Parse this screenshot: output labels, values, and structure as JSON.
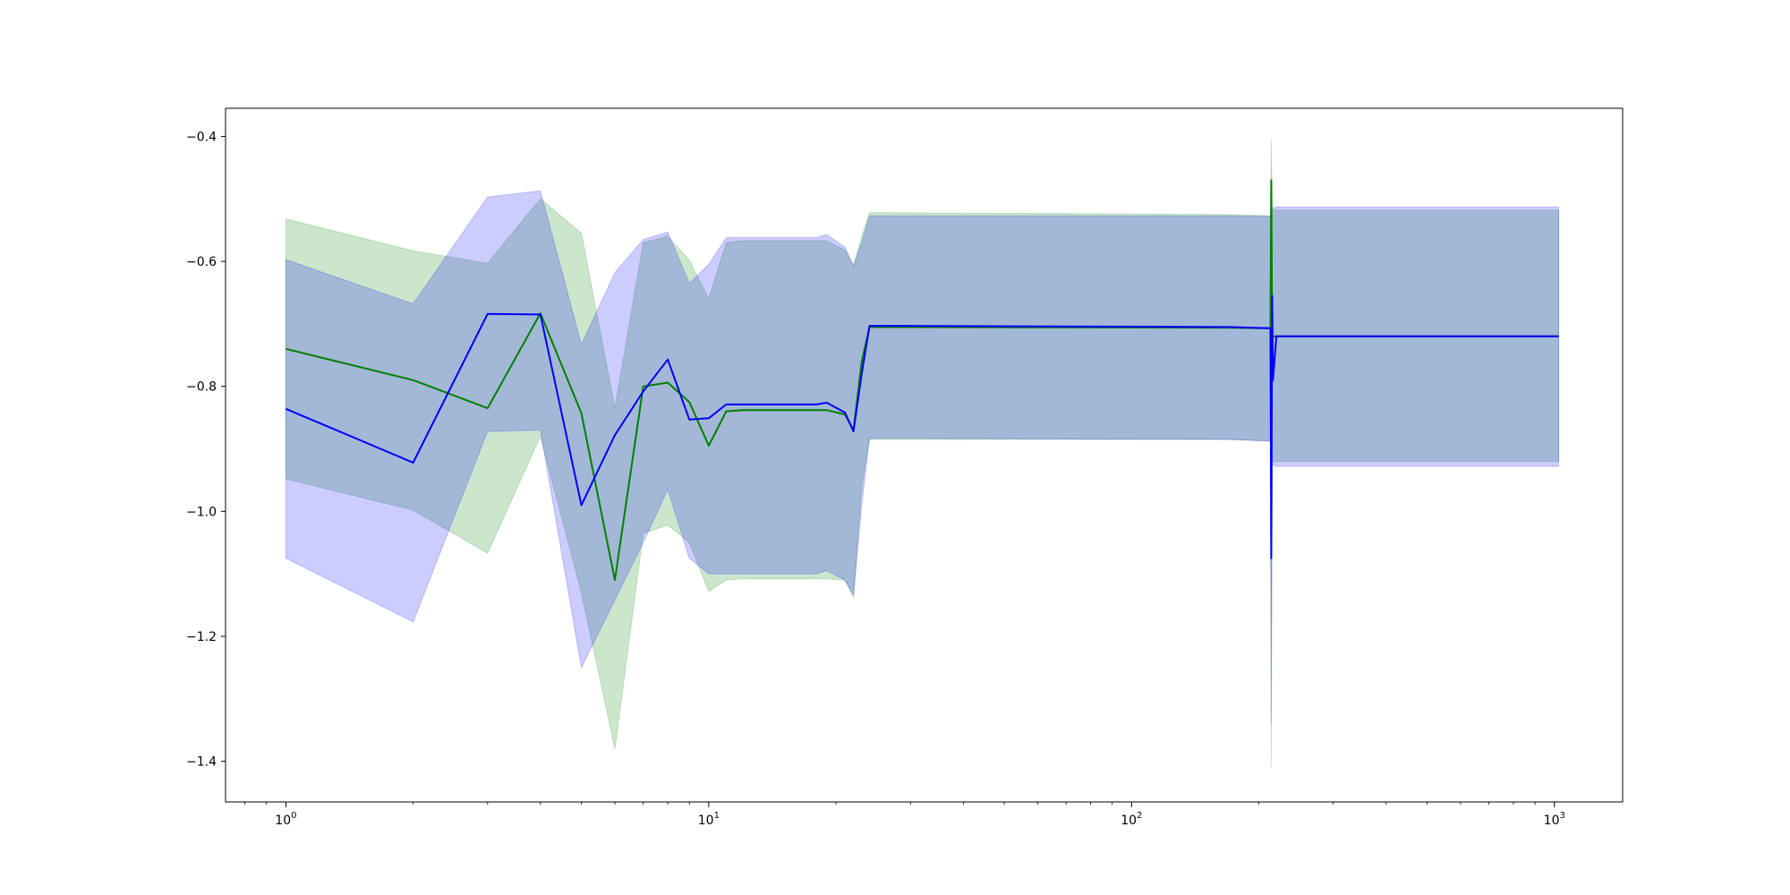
{
  "chart_data": {
    "type": "line",
    "x_scale": "log",
    "xlim": [
      0.72,
      1450
    ],
    "ylim": [
      -1.465,
      -0.355
    ],
    "grid": false,
    "title": "",
    "xlabel": "",
    "ylabel": "",
    "x_ticks": [
      {
        "value": 1,
        "base": "10",
        "exp": "0"
      },
      {
        "value": 10,
        "base": "10",
        "exp": "1"
      },
      {
        "value": 100,
        "base": "10",
        "exp": "2"
      },
      {
        "value": 1000,
        "base": "10",
        "exp": "3"
      }
    ],
    "y_ticks": [
      {
        "value": -0.4,
        "label": "−0.4"
      },
      {
        "value": -0.6,
        "label": "−0.6"
      },
      {
        "value": -0.8,
        "label": "−0.8"
      },
      {
        "value": -1.0,
        "label": "−1.0"
      },
      {
        "value": -1.2,
        "label": "−1.2"
      },
      {
        "value": -1.4,
        "label": "−1.4"
      }
    ],
    "series": [
      {
        "color": "#008000",
        "band_color": "#008000",
        "band_opacity": 0.2,
        "x": [
          1,
          2,
          3,
          4,
          5,
          6,
          7,
          8,
          9,
          10,
          11,
          12,
          15,
          19,
          21,
          22,
          23,
          24,
          170,
          213,
          214,
          215,
          216,
          220,
          1024
        ],
        "y": [
          -0.74,
          -0.79,
          -0.835,
          -0.683,
          -0.843,
          -1.11,
          -0.8,
          -0.794,
          -0.825,
          -0.895,
          -0.84,
          -0.838,
          -0.838,
          -0.838,
          -0.845,
          -0.87,
          -0.76,
          -0.705,
          -0.706,
          -0.707,
          -0.47,
          -0.72,
          -0.72,
          -0.72,
          -0.72
        ],
        "upper": [
          -0.532,
          -0.583,
          -0.603,
          -0.5,
          -0.555,
          -0.835,
          -0.57,
          -0.56,
          -0.598,
          -0.66,
          -0.57,
          -0.567,
          -0.567,
          -0.567,
          -0.582,
          -0.607,
          -0.56,
          -0.522,
          -0.525,
          -0.527,
          -0.405,
          -0.52,
          -0.518,
          -0.518,
          -0.518
        ],
        "lower": [
          -0.948,
          -0.998,
          -1.067,
          -0.88,
          -1.13,
          -1.38,
          -1.035,
          -1.022,
          -1.05,
          -1.128,
          -1.11,
          -1.108,
          -1.108,
          -1.108,
          -1.11,
          -1.133,
          -0.96,
          -0.885,
          -0.885,
          -0.887,
          -1.41,
          -0.92,
          -0.92,
          -0.92,
          -0.92
        ]
      },
      {
        "color": "#0000ff",
        "band_color": "#0000ff",
        "band_opacity": 0.2,
        "x": [
          1,
          2,
          3,
          4,
          5,
          6,
          7,
          8,
          9,
          10,
          11,
          12,
          15,
          18,
          19,
          21,
          22,
          23,
          24,
          170,
          213,
          214,
          215,
          216,
          220,
          1024
        ],
        "y": [
          -0.836,
          -0.922,
          -0.684,
          -0.685,
          -0.99,
          -0.878,
          -0.808,
          -0.757,
          -0.853,
          -0.851,
          -0.829,
          -0.829,
          -0.829,
          -0.829,
          -0.826,
          -0.842,
          -0.872,
          -0.78,
          -0.703,
          -0.705,
          -0.707,
          -1.075,
          -0.655,
          -0.79,
          -0.72,
          -0.72
        ],
        "upper": [
          -0.597,
          -0.668,
          -0.497,
          -0.487,
          -0.733,
          -0.618,
          -0.565,
          -0.553,
          -0.635,
          -0.605,
          -0.562,
          -0.562,
          -0.562,
          -0.562,
          -0.557,
          -0.577,
          -0.607,
          -0.57,
          -0.527,
          -0.527,
          -0.528,
          -0.53,
          -0.512,
          -0.515,
          -0.513,
          -0.513
        ],
        "lower": [
          -1.075,
          -1.177,
          -0.872,
          -0.87,
          -1.25,
          -1.142,
          -1.05,
          -0.965,
          -1.075,
          -1.1,
          -1.1,
          -1.1,
          -1.1,
          -1.1,
          -1.095,
          -1.11,
          -1.137,
          -0.99,
          -0.883,
          -0.885,
          -0.888,
          -1.34,
          -0.925,
          -0.925,
          -0.928,
          -0.928
        ]
      }
    ]
  }
}
